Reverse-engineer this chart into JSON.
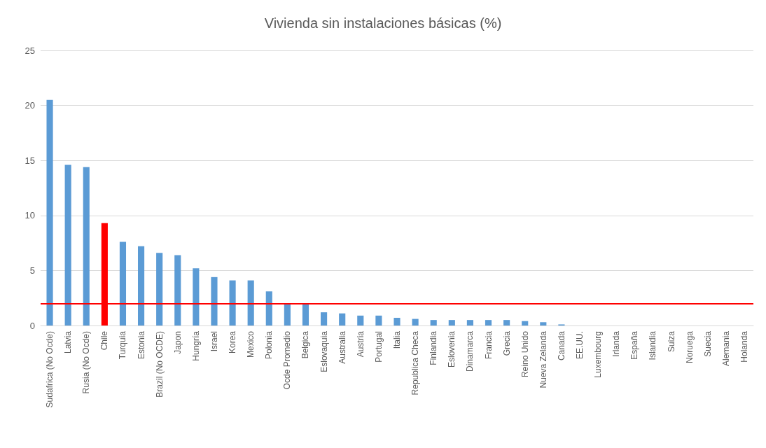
{
  "chart_data": {
    "type": "bar",
    "title": "Vivienda sin instalaciones básicas (%)",
    "categories": [
      "Sudafrica (No Ocde)",
      "Latvia",
      "Rusia (No Ocde)",
      "Chile",
      "Turquia",
      "Estonia",
      "Brazil (No OCDE)",
      "Japon",
      "Hungría",
      "Israel",
      "Korea",
      "Mexico",
      "Polonia",
      "Ocde Promedio",
      "Belgica",
      "Eslovaquia",
      "Australia",
      "Austria",
      "Portugal",
      "Italia",
      "Republica Checa",
      "Finlandia",
      "Eslovenia",
      "Dinamarca",
      "Francia",
      "Grecia",
      "Reino Unido",
      "Nueva Zelanda",
      "Canada",
      "EE.UU.",
      "Luxembourg",
      "Irlanda",
      "España",
      "Islandia",
      "Suiza",
      "Noruega",
      "Suecia",
      "Alemania",
      "Holanda"
    ],
    "values": [
      20.5,
      14.6,
      14.4,
      9.3,
      7.6,
      7.2,
      6.6,
      6.4,
      5.2,
      4.4,
      4.1,
      4.1,
      3.1,
      2.0,
      2.0,
      1.2,
      1.1,
      0.9,
      0.9,
      0.7,
      0.6,
      0.5,
      0.5,
      0.5,
      0.5,
      0.5,
      0.4,
      0.3,
      0.1,
      0,
      0,
      0,
      0,
      0,
      0,
      0,
      0,
      0,
      0
    ],
    "colors": [
      "#5b9bd5",
      "#5b9bd5",
      "#5b9bd5",
      "#ff0000",
      "#5b9bd5",
      "#5b9bd5",
      "#5b9bd5",
      "#5b9bd5",
      "#5b9bd5",
      "#5b9bd5",
      "#5b9bd5",
      "#5b9bd5",
      "#5b9bd5",
      "#5b9bd5",
      "#5b9bd5",
      "#5b9bd5",
      "#5b9bd5",
      "#5b9bd5",
      "#5b9bd5",
      "#5b9bd5",
      "#5b9bd5",
      "#5b9bd5",
      "#5b9bd5",
      "#5b9bd5",
      "#5b9bd5",
      "#5b9bd5",
      "#5b9bd5",
      "#5b9bd5",
      "#5b9bd5",
      "#5b9bd5",
      "#5b9bd5",
      "#5b9bd5",
      "#5b9bd5",
      "#5b9bd5",
      "#5b9bd5",
      "#5b9bd5",
      "#5b9bd5",
      "#5b9bd5",
      "#5b9bd5"
    ],
    "ylim": [
      0,
      25
    ],
    "yticks": [
      0,
      5,
      10,
      15,
      20,
      25
    ],
    "grid": "y",
    "ref_lines": [
      {
        "axis": "y",
        "value": 2,
        "color": "#ff0000"
      }
    ]
  }
}
